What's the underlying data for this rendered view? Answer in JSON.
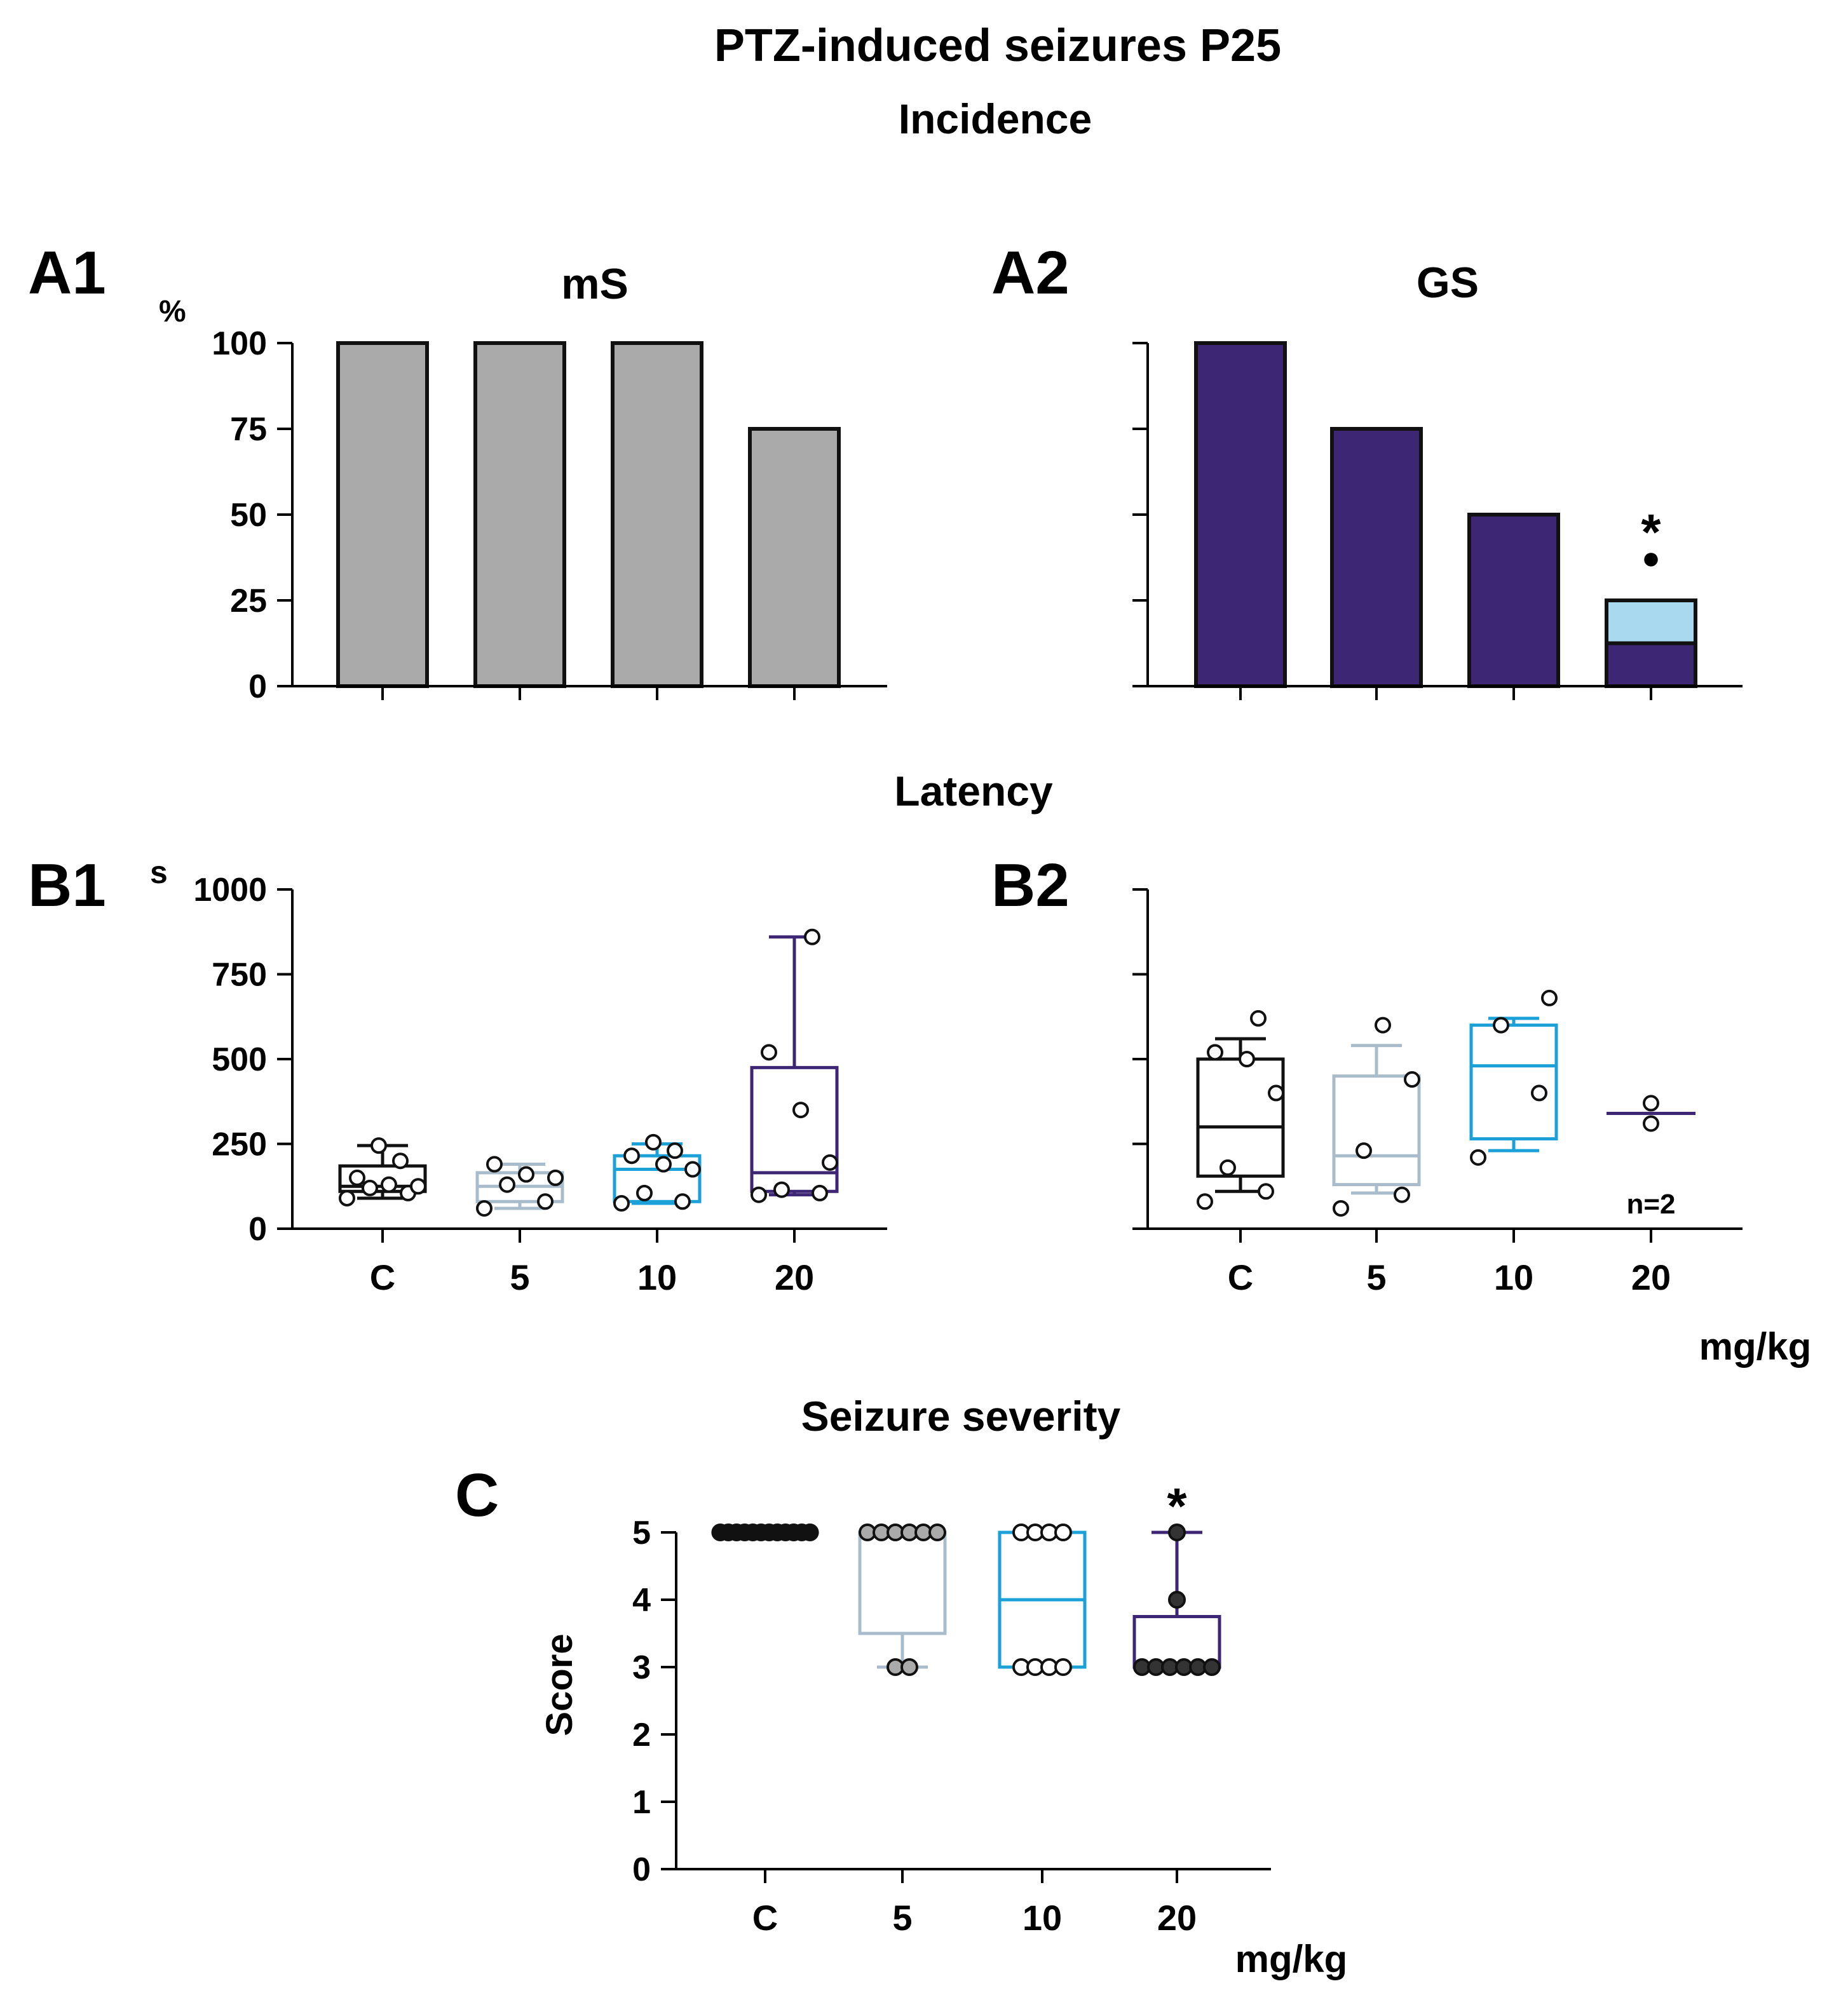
{
  "figure": {
    "title": "PTZ-induced seizures P25",
    "section_incidence": "Incidence",
    "section_latency": "Latency",
    "section_severity": "Seizure severity",
    "unit_label": "mg/kg"
  },
  "colors": {
    "control": "#111111",
    "dose5": "#a9bccb",
    "dose10": "#1ba0d8",
    "dose20": "#3d2775",
    "bar_grey": "#aaaaaa",
    "bar_purple": "#3d2775",
    "bar_lightblue": "#a9d9ef",
    "dot_grey": "#aaaaaa"
  },
  "chart_data": [
    {
      "id": "A1",
      "panel_label": "A1",
      "type": "bar",
      "title": "mS",
      "ylabel": "%",
      "ylim": [
        0,
        100
      ],
      "yticks": [
        0,
        25,
        50,
        75,
        100
      ],
      "ytick_labels": [
        "0",
        "25",
        "50",
        "75",
        "100"
      ],
      "categories": [
        "C",
        "5",
        "10",
        "20"
      ],
      "values": [
        100,
        100,
        100,
        75
      ]
    },
    {
      "id": "A2",
      "panel_label": "A2",
      "type": "bar",
      "title": "GS",
      "ylim": [
        0,
        100
      ],
      "yticks": [
        0,
        25,
        50,
        75,
        100
      ],
      "categories": [
        "C",
        "5",
        "10",
        "20"
      ],
      "values": [
        100,
        75,
        50,
        25
      ],
      "dark_portion": [
        100,
        75,
        50,
        12.5
      ],
      "annotations": [
        {
          "category": "20",
          "text": "*"
        },
        {
          "category": "20",
          "text": "●"
        }
      ]
    },
    {
      "id": "B1",
      "panel_label": "B1",
      "type": "box",
      "ylabel": "s",
      "ylim": [
        0,
        1000
      ],
      "yticks": [
        0,
        250,
        500,
        750,
        1000
      ],
      "ytick_labels": [
        "0",
        "250",
        "500",
        "750",
        "1000"
      ],
      "categories": [
        "C",
        "5",
        "10",
        "20"
      ],
      "boxes": [
        {
          "min": 90,
          "q1": 110,
          "median": 125,
          "q3": 185,
          "max": 245
        },
        {
          "min": 60,
          "q1": 80,
          "median": 125,
          "q3": 165,
          "max": 190
        },
        {
          "min": 75,
          "q1": 80,
          "median": 175,
          "q3": 215,
          "max": 250
        },
        {
          "min": 100,
          "q1": 110,
          "median": 165,
          "q3": 475,
          "max": 860
        }
      ],
      "points": [
        [
          90,
          105,
          120,
          125,
          130,
          150,
          200,
          245
        ],
        [
          60,
          80,
          130,
          150,
          160,
          190
        ],
        [
          75,
          80,
          105,
          175,
          190,
          215,
          230,
          255
        ],
        [
          100,
          105,
          115,
          195,
          350,
          520,
          860
        ]
      ]
    },
    {
      "id": "B2",
      "panel_label": "B2",
      "type": "box",
      "ylim": [
        0,
        1000
      ],
      "yticks": [
        0,
        250,
        500,
        750,
        1000
      ],
      "categories": [
        "C",
        "5",
        "10",
        "20"
      ],
      "boxes": [
        {
          "min": 110,
          "q1": 155,
          "median": 300,
          "q3": 500,
          "max": 560
        },
        {
          "min": 105,
          "q1": 130,
          "median": 215,
          "q3": 450,
          "max": 540
        },
        {
          "min": 230,
          "q1": 265,
          "median": 480,
          "q3": 600,
          "max": 620
        },
        {
          "min": 340,
          "q1": 340,
          "median": 340,
          "q3": 340,
          "max": 340
        }
      ],
      "points": [
        [
          80,
          110,
          180,
          400,
          500,
          520,
          620
        ],
        [
          60,
          100,
          230,
          440,
          600
        ],
        [
          210,
          400,
          600,
          680
        ],
        [
          310,
          370
        ]
      ],
      "annotations": [
        {
          "category": "20",
          "text": "n=2"
        }
      ]
    },
    {
      "id": "C",
      "panel_label": "C",
      "type": "box",
      "ylabel": "Score",
      "xlabel": "mg/kg",
      "ylim": [
        0,
        5
      ],
      "yticks": [
        0,
        1,
        2,
        3,
        4,
        5
      ],
      "ytick_labels": [
        "0",
        "1",
        "2",
        "3",
        "4",
        "5"
      ],
      "categories": [
        "C",
        "5",
        "10",
        "20"
      ],
      "boxes": [
        {
          "min": 5,
          "q1": 5,
          "median": 5,
          "q3": 5,
          "max": 5
        },
        {
          "min": 3,
          "q1": 3.5,
          "median": 5,
          "q3": 5,
          "max": 5
        },
        {
          "min": 3,
          "q1": 3,
          "median": 4,
          "q3": 5,
          "max": 5
        },
        {
          "min": 3,
          "q1": 3,
          "median": 3,
          "q3": 3.75,
          "max": 5
        }
      ],
      "points": [
        [
          5,
          5,
          5,
          5,
          5,
          5,
          5,
          5,
          5,
          5,
          5,
          5
        ],
        [
          5,
          5,
          5,
          5,
          5,
          5,
          3,
          3
        ],
        [
          5,
          5,
          5,
          5,
          3,
          3,
          3,
          3
        ],
        [
          5,
          4,
          3,
          3,
          3,
          3,
          3,
          3
        ]
      ],
      "annotations": [
        {
          "category": "20",
          "text": "*"
        }
      ]
    }
  ]
}
